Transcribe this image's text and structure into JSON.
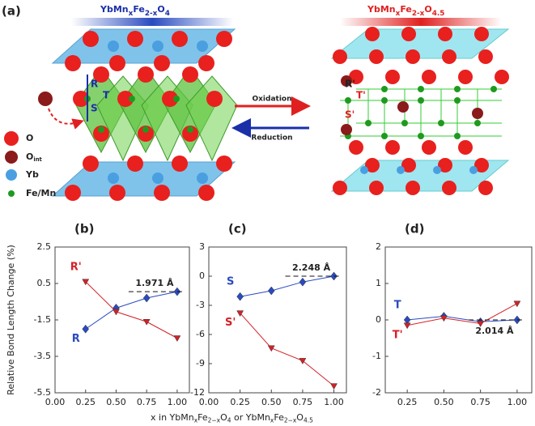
{
  "panel_a": {
    "label": "(a)",
    "left_title": [
      "YbMn",
      "x",
      "Fe",
      "2-x",
      "O",
      "4"
    ],
    "right_title": [
      "YbMn",
      "x",
      "Fe",
      "2-x",
      "O",
      "4.5"
    ],
    "oxidation": "Oxidation",
    "reduction": "Reduction",
    "legend": [
      [
        "O"
      ],
      [
        "O",
        "int"
      ],
      [
        "Yb"
      ],
      [
        "Fe/Mn"
      ]
    ],
    "left_bonds": [
      "R",
      "T",
      "S"
    ],
    "right_bonds": [
      "R'",
      "T'",
      "S'"
    ]
  },
  "y_label": "Relative Bond Length Change (%)",
  "x_label": [
    "x in YbMn",
    "x",
    "Fe",
    "2−x",
    "O",
    "4",
    " or YbMn",
    "x",
    "Fe",
    "2−x",
    "O",
    "4.5"
  ],
  "chart_data": [
    {
      "type": "line",
      "title": "(b)",
      "x": [
        0.25,
        0.5,
        0.75,
        1.0
      ],
      "xlim": [
        0,
        1.1
      ],
      "xticks": [
        {
          "value": 0,
          "label": "0.00"
        },
        {
          "value": 0.25,
          "label": "0.25"
        },
        {
          "value": 0.5,
          "label": "0.50"
        },
        {
          "value": 0.75,
          "label": "0.75"
        },
        {
          "value": 1.0,
          "label": "1.00"
        }
      ],
      "ylim": [
        -5.5,
        2.5
      ],
      "yticks": [
        -5.5,
        -3.5,
        -1.5,
        0.5,
        2.5
      ],
      "series": [
        {
          "name": "R",
          "color": "#2a4bbf",
          "values": [
            -2.0,
            -0.85,
            -0.3,
            0.05
          ]
        },
        {
          "name": "R'",
          "color": "#d42027",
          "values": [
            0.6,
            -1.05,
            -1.6,
            -2.5
          ]
        }
      ],
      "annotation": "1.971 Å"
    },
    {
      "type": "line",
      "title": "(c)",
      "x": [
        0.25,
        0.5,
        0.75,
        1.0
      ],
      "xlim": [
        0,
        1.1
      ],
      "xticks": [
        {
          "value": 0,
          "label": "0.00"
        },
        {
          "value": 0.25,
          "label": "0.25"
        },
        {
          "value": 0.5,
          "label": "0.50"
        },
        {
          "value": 0.75,
          "label": "0.75"
        },
        {
          "value": 1.0,
          "label": "1.00"
        }
      ],
      "ylim": [
        -12,
        3
      ],
      "yticks": [
        -12,
        -9,
        -6,
        -3,
        0,
        3
      ],
      "series": [
        {
          "name": "S",
          "color": "#2a4bbf",
          "values": [
            -2.1,
            -1.5,
            -0.6,
            0
          ]
        },
        {
          "name": "S'",
          "color": "#d42027",
          "values": [
            -3.8,
            -7.4,
            -8.7,
            -11.3
          ]
        }
      ],
      "annotation": "2.248 Å"
    },
    {
      "type": "line",
      "title": "(d)",
      "x": [
        0.25,
        0.5,
        0.75,
        1.0
      ],
      "xlim": [
        0.1,
        1.1
      ],
      "xticks": [
        {
          "value": 0.25,
          "label": "0.25"
        },
        {
          "value": 0.5,
          "label": "0.50"
        },
        {
          "value": 0.75,
          "label": "0.75"
        },
        {
          "value": 1.0,
          "label": "1.00"
        }
      ],
      "ylim": [
        -2,
        2
      ],
      "yticks": [
        -2,
        -1,
        0,
        1,
        2
      ],
      "series": [
        {
          "name": "T",
          "color": "#2a4bbf",
          "values": [
            0.0,
            0.1,
            -0.05,
            0.0
          ]
        },
        {
          "name": "T'",
          "color": "#d42027",
          "values": [
            -0.15,
            0.05,
            -0.1,
            0.45
          ]
        }
      ],
      "annotation": "2.014 Å"
    }
  ]
}
